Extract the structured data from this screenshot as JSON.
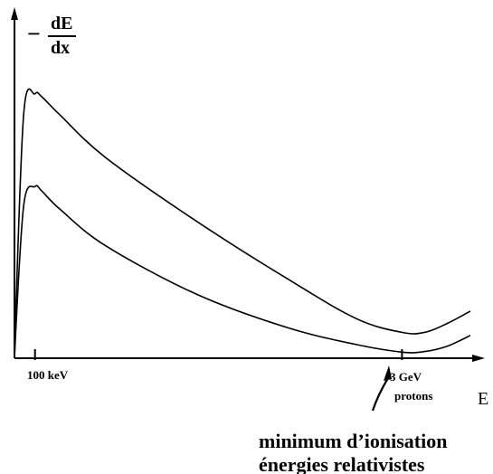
{
  "chart_data": {
    "type": "line",
    "ylabel_minus": "−",
    "ylabel_numerator": "dE",
    "ylabel_denominator": "dx",
    "xlabel": "E",
    "tick_labels": [
      "100 keV",
      "3 GeV"
    ],
    "tick_sublabel": "protons",
    "annotation_lines": [
      "minimum d’ionisation",
      "énergies relativistes"
    ],
    "series": [
      {
        "x": [
          0.0,
          0.02,
          0.045,
          0.06,
          0.1,
          0.2,
          0.4,
          0.6,
          0.75,
          0.85,
          0.9,
          0.95,
          1.0
        ],
        "values": [
          0.0,
          0.8,
          0.87,
          0.86,
          0.8,
          0.66,
          0.45,
          0.26,
          0.13,
          0.085,
          0.085,
          0.115,
          0.155
        ]
      },
      {
        "x": [
          0.0,
          0.02,
          0.045,
          0.06,
          0.1,
          0.2,
          0.4,
          0.6,
          0.75,
          0.85,
          0.9,
          0.95,
          1.0
        ],
        "values": [
          0.0,
          0.5,
          0.565,
          0.55,
          0.49,
          0.37,
          0.21,
          0.1,
          0.045,
          0.02,
          0.022,
          0.04,
          0.075
        ]
      }
    ],
    "tick_positions": [
      0.045,
      0.85
    ],
    "xlim": [
      0,
      1
    ],
    "ylim": [
      0,
      1
    ]
  }
}
